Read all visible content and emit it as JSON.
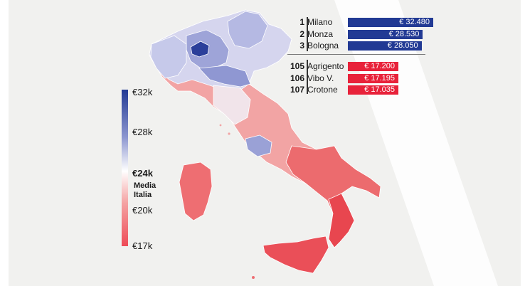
{
  "scale": {
    "max_label": "€32k",
    "l28_label": "€28k",
    "mid_label": "€24k",
    "media_line1": "Media",
    "media_line2": "Italia",
    "l20_label": "€20k",
    "min_label": "€17k",
    "colors": {
      "high": "#223a94",
      "mid": "#ffffff",
      "low": "#ee4b57"
    }
  },
  "ranking": {
    "top": [
      {
        "rank": "1",
        "city": "Milano",
        "value": "€ 32.480",
        "amount": 32480
      },
      {
        "rank": "2",
        "city": "Monza",
        "value": "€ 28.530",
        "amount": 28530
      },
      {
        "rank": "3",
        "city": "Bologna",
        "value": "€ 28.050",
        "amount": 28050
      }
    ],
    "bottom": [
      {
        "rank": "105",
        "city": "Agrigento",
        "value": "€ 17.200",
        "amount": 17200
      },
      {
        "rank": "106",
        "city": "Vibo V.",
        "value": "€ 17.195",
        "amount": 17195
      },
      {
        "rank": "107",
        "city": "Crotone",
        "value": "€ 17.035",
        "amount": 17035
      }
    ],
    "colors": {
      "top": "#223a94",
      "bottom": "#e8223a"
    }
  }
}
